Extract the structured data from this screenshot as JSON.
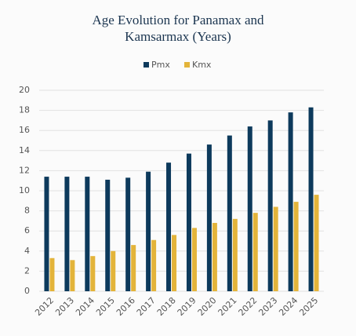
{
  "chart_data": {
    "type": "bar",
    "title": [
      "Age Evolution for Panamax and",
      "Kamsarmax (Years)"
    ],
    "categories": [
      "2012",
      "2013",
      "2014",
      "2015",
      "2016",
      "2017",
      "2018",
      "2019",
      "2020",
      "2021",
      "2022",
      "2023",
      "2024",
      "2025"
    ],
    "series": [
      {
        "name": "Pmx",
        "color": "#0d3a5c",
        "values": [
          11.4,
          11.4,
          11.4,
          11.1,
          11.3,
          11.9,
          12.8,
          13.7,
          14.6,
          15.5,
          16.4,
          17.0,
          17.8,
          18.3
        ]
      },
      {
        "name": "Kmx",
        "color": "#e3b43a",
        "values": [
          3.3,
          3.1,
          3.5,
          4.0,
          4.6,
          5.1,
          5.6,
          6.3,
          6.8,
          7.2,
          7.8,
          8.4,
          8.9,
          9.6
        ]
      }
    ],
    "ylim": [
      0,
      20
    ],
    "yticks": [
      0,
      2,
      4,
      6,
      8,
      10,
      12,
      14,
      16,
      18,
      20
    ],
    "grid": true,
    "legend": "top"
  }
}
